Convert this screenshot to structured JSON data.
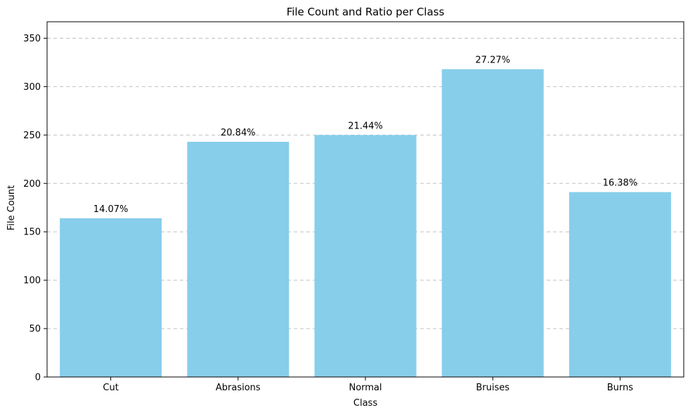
{
  "chart_data": {
    "type": "bar",
    "title": "File Count and Ratio per Class",
    "xlabel": "Class",
    "ylabel": "File Count",
    "categories": [
      "Cut",
      "Abrasions",
      "Normal",
      "Bruises",
      "Burns"
    ],
    "values": [
      164,
      243,
      250,
      318,
      191
    ],
    "data_labels": [
      "14.07%",
      "20.84%",
      "21.44%",
      "27.27%",
      "16.38%"
    ],
    "ylim": [
      0,
      367
    ],
    "yticks": [
      0,
      50,
      100,
      150,
      200,
      250,
      300,
      350
    ],
    "grid": "y-dashed",
    "bar_color": "#87ceeb",
    "grid_color": "#c0c0c0"
  }
}
